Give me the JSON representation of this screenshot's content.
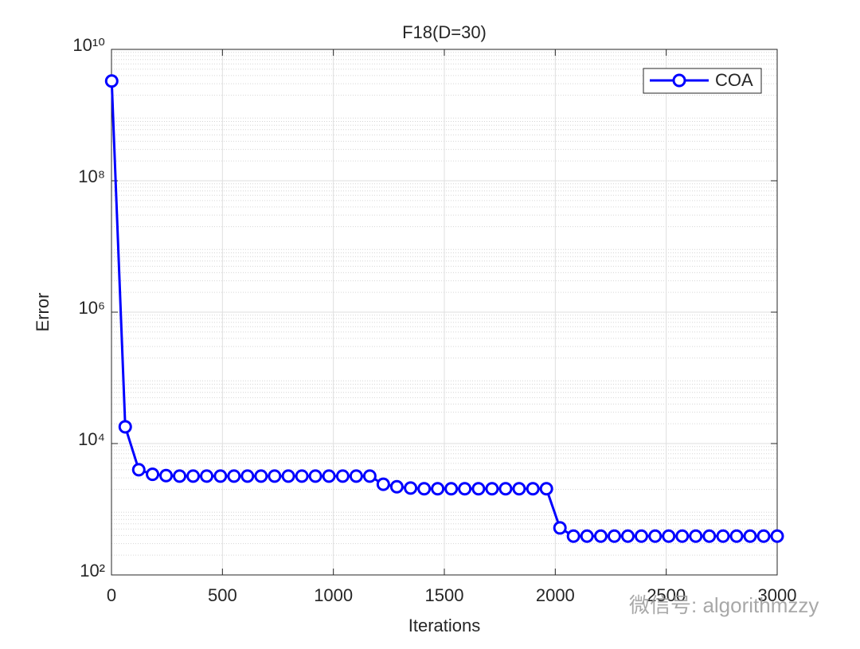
{
  "chart_data": {
    "type": "line",
    "title": "F18(D=30)",
    "x_label": "Iterations",
    "y_label": "Error",
    "x": [
      1,
      62,
      123,
      185,
      246,
      307,
      368,
      429,
      491,
      552,
      613,
      674,
      735,
      797,
      858,
      919,
      980,
      1042,
      1103,
      1164,
      1225,
      1286,
      1348,
      1409,
      1470,
      1531,
      1592,
      1654,
      1715,
      1776,
      1837,
      1899,
      1960,
      2021,
      2082,
      2143,
      2205,
      2266,
      2327,
      2388,
      2450,
      2511,
      2572,
      2633,
      2694,
      2756,
      2817,
      2878,
      2939,
      3000
    ],
    "series": [
      {
        "name": "COA",
        "color": "#0000ff",
        "values": [
          3300000000,
          18000,
          4000,
          3400,
          3250,
          3200,
          3200,
          3200,
          3200,
          3200,
          3200,
          3200,
          3200,
          3200,
          3200,
          3200,
          3200,
          3200,
          3200,
          3200,
          2400,
          2200,
          2100,
          2050,
          2050,
          2050,
          2050,
          2050,
          2050,
          2050,
          2050,
          2050,
          2050,
          520,
          390,
          390,
          390,
          390,
          390,
          390,
          390,
          390,
          390,
          390,
          390,
          390,
          390,
          390,
          390,
          390
        ]
      }
    ],
    "xlim": [
      0,
      3000
    ],
    "xticks": [
      0,
      500,
      1000,
      1500,
      2000,
      2500,
      3000
    ],
    "ylim": [
      100,
      10000000000
    ],
    "log_y": true,
    "yticks": [
      {
        "value": 100,
        "label": "10²"
      },
      {
        "value": 10000,
        "label": "10⁴"
      },
      {
        "value": 1000000,
        "label": "10⁶"
      },
      {
        "value": 100000000,
        "label": "10⁸"
      },
      {
        "value": 10000000000,
        "label": "10¹⁰"
      }
    ],
    "grid": true,
    "legend": "upper right",
    "watermark": "微信号: algorithmzzy"
  }
}
